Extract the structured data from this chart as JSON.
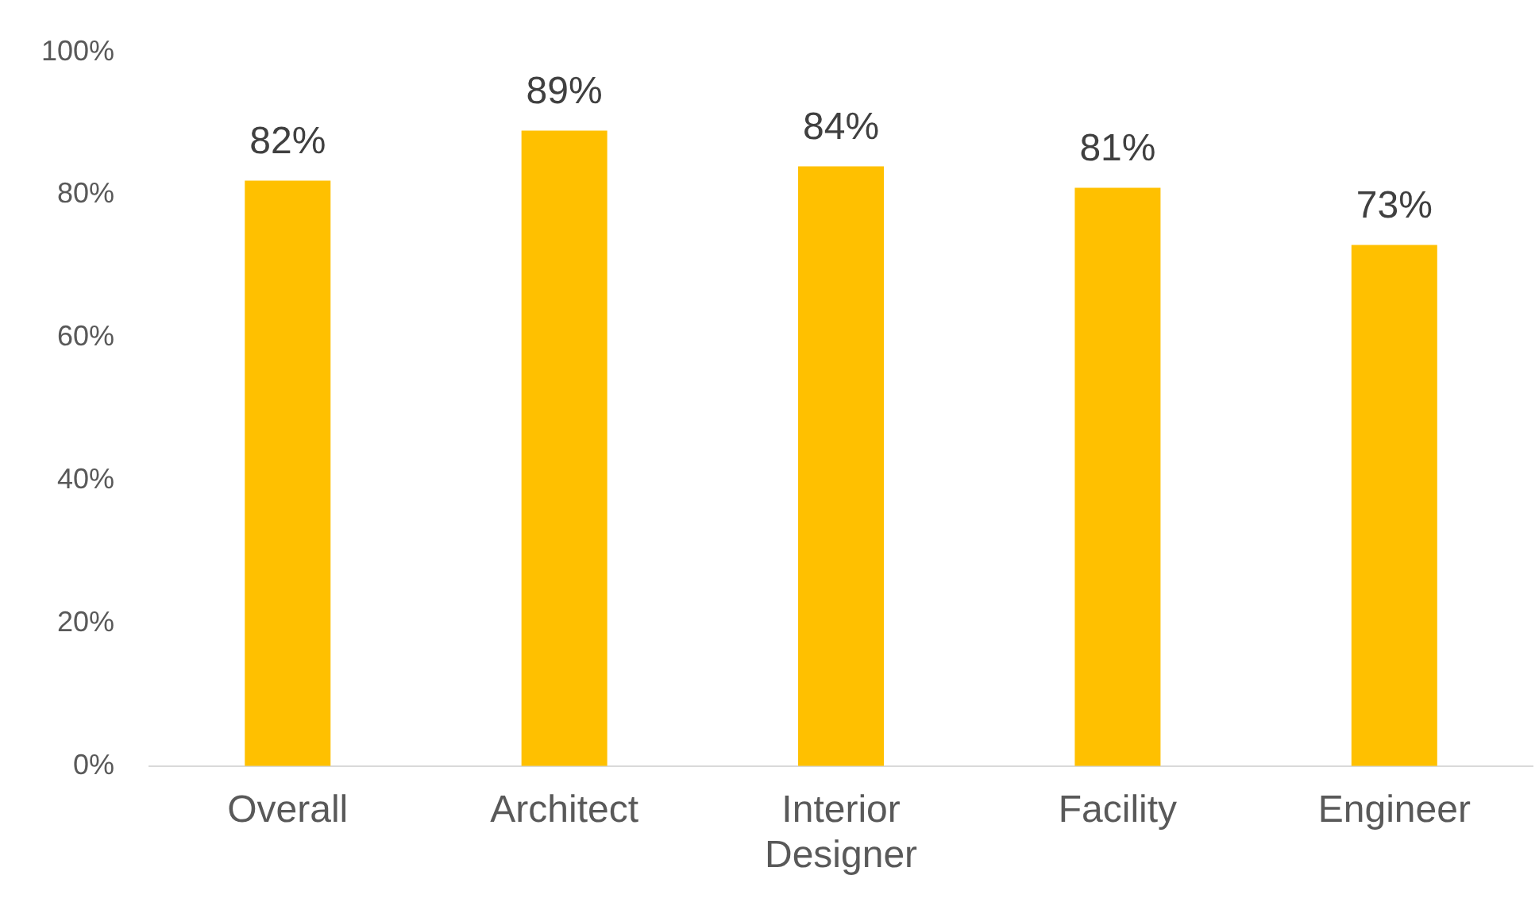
{
  "chart_data": {
    "type": "bar",
    "categories": [
      "Overall",
      "Architect",
      "Interior Designer",
      "Facility",
      "Engineer"
    ],
    "values": [
      82,
      89,
      84,
      81,
      73
    ],
    "value_labels": [
      "82%",
      "89%",
      "84%",
      "81%",
      "73%"
    ],
    "color": "#ffc000",
    "ylim": [
      0,
      100
    ],
    "yticks": [
      {
        "value": 0,
        "label": "0%"
      },
      {
        "value": 20,
        "label": "20%"
      },
      {
        "value": 40,
        "label": "40%"
      },
      {
        "value": 60,
        "label": "60%"
      },
      {
        "value": 80,
        "label": "80%"
      },
      {
        "value": 100,
        "label": "100%"
      }
    ]
  }
}
